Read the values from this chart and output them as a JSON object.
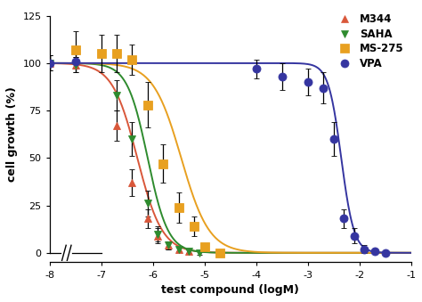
{
  "title": "",
  "xlabel": "test compound (logM)",
  "ylabel": "cell growth (%)",
  "ylim": [
    -5,
    130
  ],
  "background_color": "#ffffff",
  "series": {
    "M344": {
      "color": "#d9573a",
      "marker": "^",
      "marker_size": 5.5,
      "line_color": "#d9573a",
      "ec50_log": -6.3,
      "hill": 1.8,
      "points_x_log": [
        -8.0,
        -7.5,
        -6.7,
        -6.4,
        -6.1,
        -5.9,
        -5.7,
        -5.5,
        -5.3
      ],
      "points_y": [
        100,
        99,
        67,
        37,
        18,
        9,
        4,
        2,
        1
      ],
      "errors_y": [
        4,
        4,
        8,
        7,
        5,
        4,
        2,
        1,
        1
      ]
    },
    "SAHA": {
      "color": "#2e8b2e",
      "marker": "v",
      "marker_size": 5.5,
      "line_color": "#2e8b2e",
      "ec50_log": -6.1,
      "hill": 2.2,
      "points_x_log": [
        -8.0,
        -7.5,
        -6.7,
        -6.4,
        -6.1,
        -5.9,
        -5.7,
        -5.5,
        -5.3,
        -5.1
      ],
      "points_y": [
        100,
        99,
        83,
        60,
        26,
        10,
        4,
        2,
        1,
        0
      ],
      "errors_y": [
        4,
        4,
        8,
        9,
        7,
        4,
        2,
        1,
        1,
        1
      ]
    },
    "MS-275": {
      "color": "#e8a020",
      "marker": "s",
      "marker_size": 6.5,
      "line_color": "#e8a020",
      "ec50_log": -5.45,
      "hill": 1.6,
      "points_x_log": [
        -7.5,
        -7.0,
        -6.7,
        -6.4,
        -6.1,
        -5.8,
        -5.5,
        -5.2,
        -5.0,
        -4.7
      ],
      "points_y": [
        107,
        105,
        105,
        102,
        78,
        47,
        24,
        14,
        3,
        0
      ],
      "errors_y": [
        10,
        10,
        10,
        8,
        12,
        10,
        8,
        5,
        2,
        1
      ]
    },
    "VPA": {
      "color": "#3535a0",
      "marker": "o",
      "marker_size": 6.5,
      "line_color": "#3535a0",
      "ec50_log": -2.35,
      "hill": 3.5,
      "points_x_log": [
        -8.0,
        -7.5,
        -4.0,
        -3.5,
        -3.0,
        -2.7,
        -2.5,
        -2.3,
        -2.1,
        -1.9,
        -1.7,
        -1.5
      ],
      "points_y": [
        100,
        101,
        97,
        93,
        90,
        87,
        60,
        18,
        9,
        2,
        1,
        0
      ],
      "errors_y": [
        4,
        4,
        5,
        7,
        7,
        8,
        9,
        5,
        4,
        2,
        1,
        1
      ]
    }
  }
}
